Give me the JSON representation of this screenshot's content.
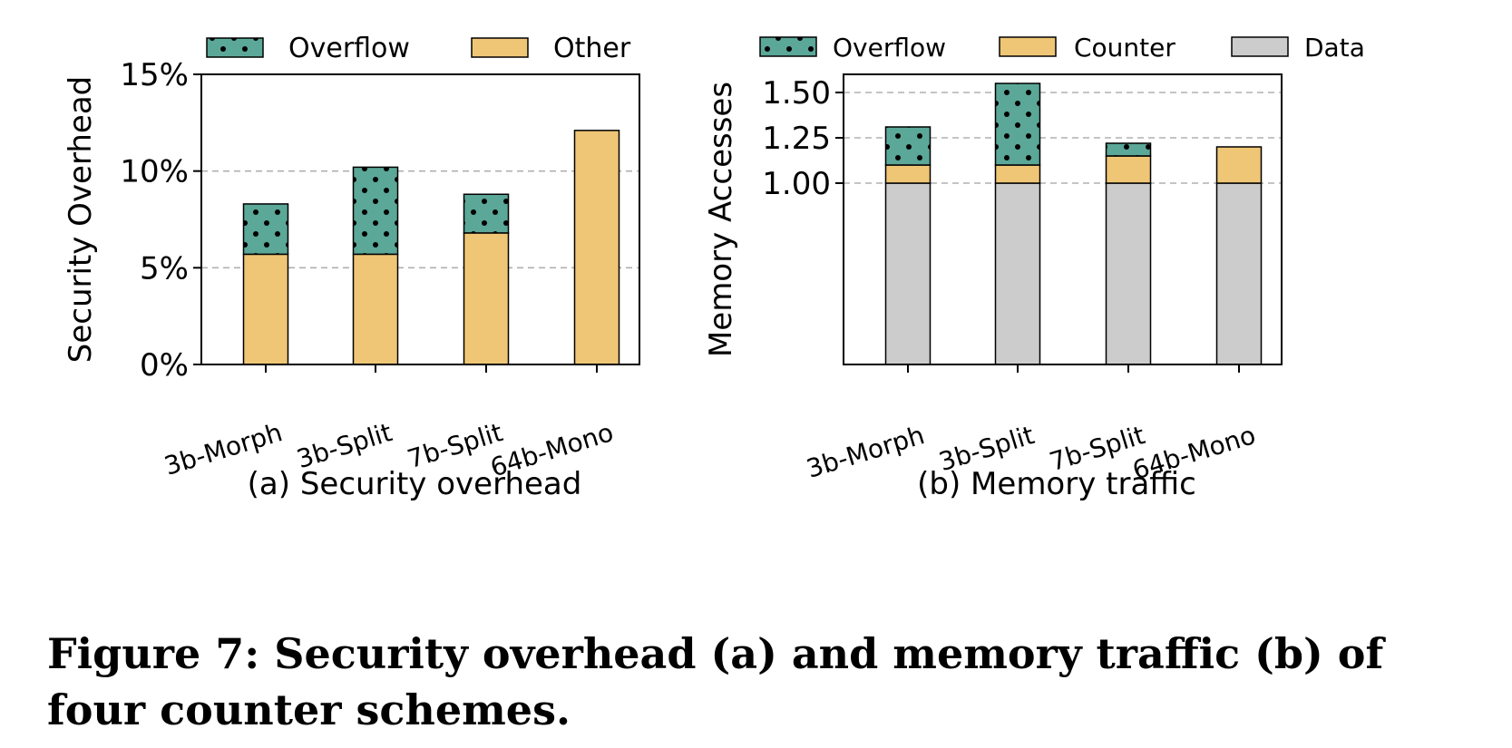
{
  "caption": "Figure 7: Security overhead (a) and memory traffic (b) of four counter schemes.",
  "colors": {
    "overflow": "#5ba798",
    "other": "#efc676",
    "data": "#cccccc",
    "grid": "#b0b0b0"
  },
  "chart_data": [
    {
      "type": "bar",
      "stacked": true,
      "subcaption": "(a) Security overhead",
      "ylabel": "Security Overhead",
      "ylim": [
        0,
        15
      ],
      "yticks": [
        0,
        5,
        10,
        15
      ],
      "ytick_labels": [
        "0%",
        "5%",
        "10%",
        "15%"
      ],
      "grid": "horizontal dashed",
      "legend": "top",
      "categories": [
        "3b-Morph",
        "3b-Split",
        "7b-Split",
        "64b-Mono"
      ],
      "series": [
        {
          "name": "Other",
          "color": "#efc676",
          "hatch": false,
          "values": [
            5.7,
            5.7,
            6.8,
            12.1
          ]
        },
        {
          "name": "Overflow",
          "color": "#5ba798",
          "hatch": true,
          "values": [
            2.6,
            4.5,
            2.0,
            0
          ]
        }
      ],
      "legend_order": [
        "Overflow",
        "Other"
      ]
    },
    {
      "type": "bar",
      "stacked": true,
      "subcaption": "(b) Memory traffic",
      "ylabel": "Memory Accesses",
      "ylim": [
        0,
        1.6
      ],
      "yticks": [
        1.0,
        1.25,
        1.5
      ],
      "ytick_labels": [
        "1.00",
        "1.25",
        "1.50"
      ],
      "grid": "horizontal dashed",
      "legend": "top",
      "categories": [
        "3b-Morph",
        "3b-Split",
        "7b-Split",
        "64b-Mono"
      ],
      "series": [
        {
          "name": "Data",
          "color": "#cccccc",
          "hatch": false,
          "values": [
            1.0,
            1.0,
            1.0,
            1.0
          ]
        },
        {
          "name": "Counter",
          "color": "#efc676",
          "hatch": false,
          "values": [
            0.1,
            0.1,
            0.15,
            0.2
          ]
        },
        {
          "name": "Overflow",
          "color": "#5ba798",
          "hatch": true,
          "values": [
            0.21,
            0.45,
            0.07,
            0
          ]
        }
      ],
      "legend_order": [
        "Overflow",
        "Counter",
        "Data"
      ]
    }
  ]
}
